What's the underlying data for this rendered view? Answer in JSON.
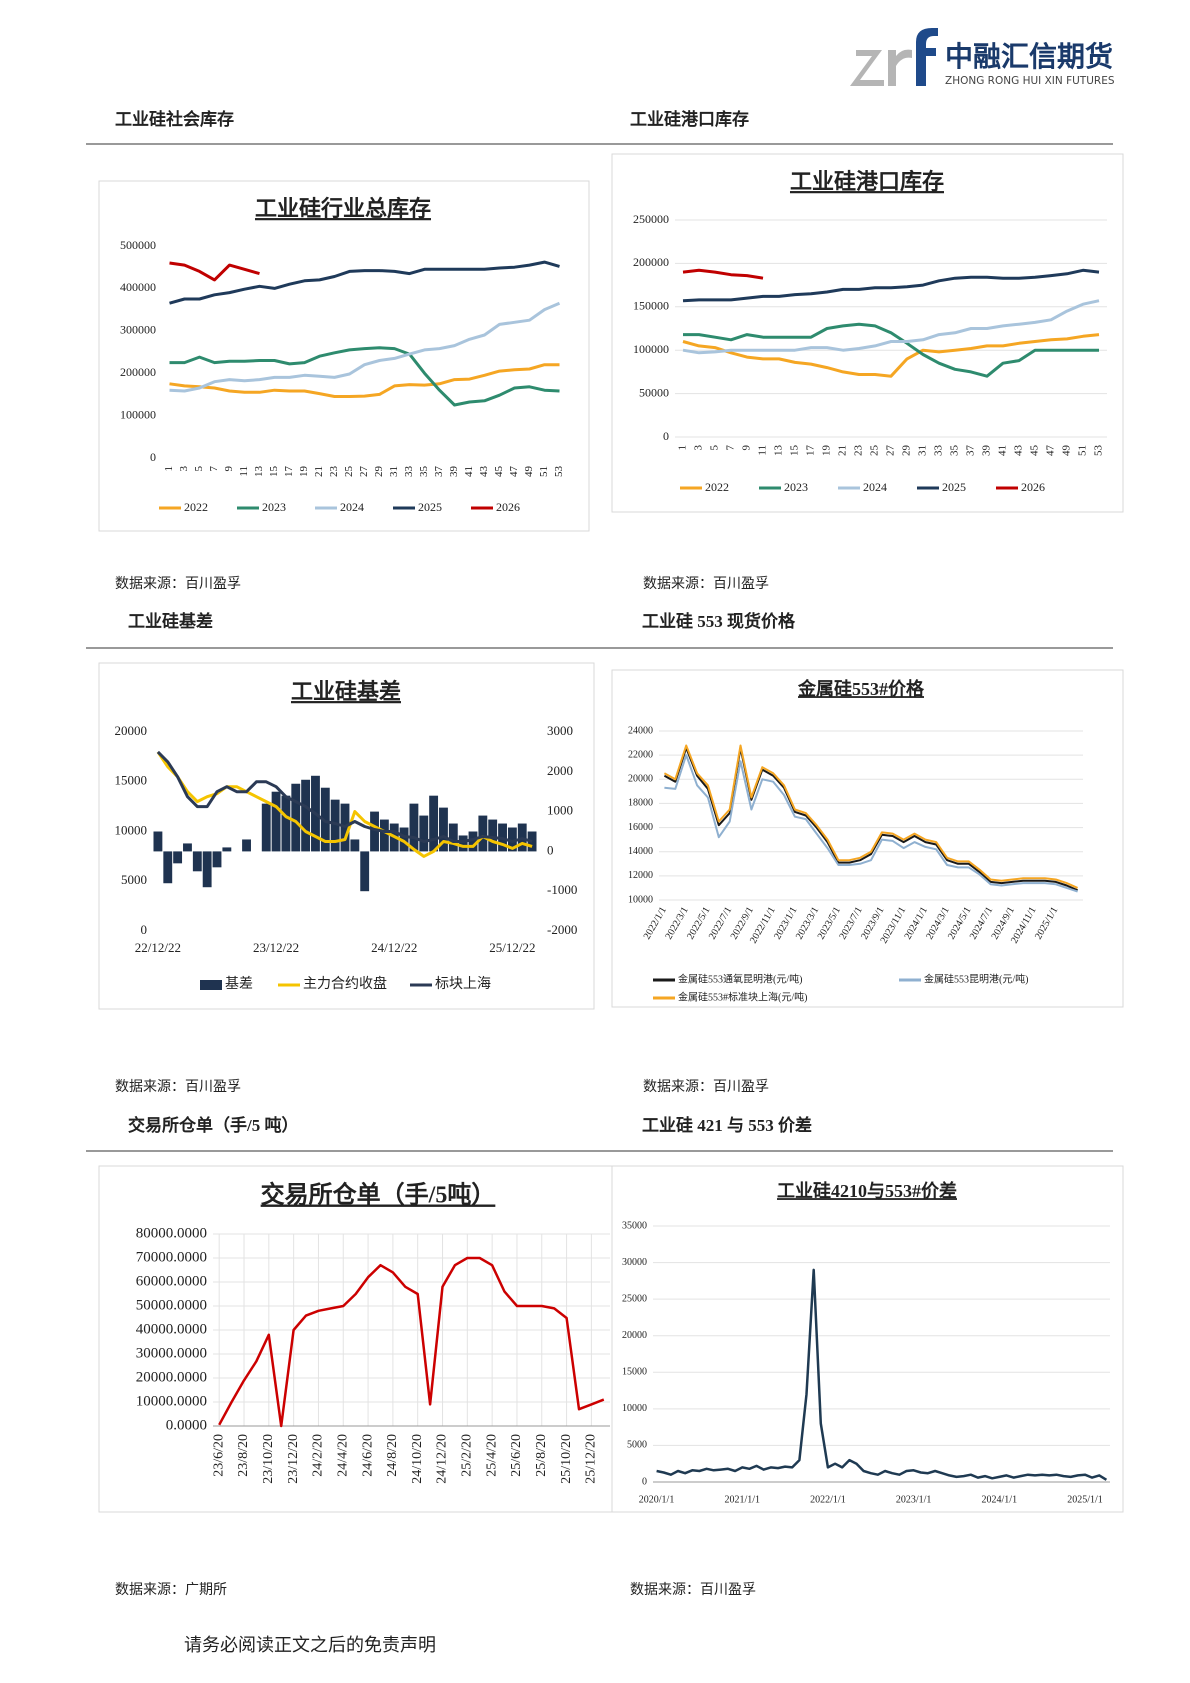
{
  "header": {
    "company": "中融汇信期货",
    "company_en": "ZHONG RONG HUI XIN FUTURES"
  },
  "sections": [
    {
      "heading": "工业硅社会库存",
      "source": "数据来源：百川盈孚"
    },
    {
      "heading": "工业硅港口库存",
      "source": "数据来源：百川盈孚"
    },
    {
      "heading": "工业硅基差",
      "source": "数据来源：百川盈孚"
    },
    {
      "heading": "工业硅 553 现货价格",
      "source": "数据来源：百川盈孚"
    },
    {
      "heading": "交易所仓单（手/5 吨）",
      "source": "数据来源：广期所"
    },
    {
      "heading": "工业硅 421 与 553 价差",
      "source": "数据来源：百川盈孚"
    }
  ],
  "footer": "请务必阅读正文之后的免责声明",
  "chart_data": [
    {
      "type": "line",
      "title": "工业硅行业总库存",
      "legend": "bottom",
      "grid": false,
      "categories": [
        "1",
        "3",
        "5",
        "7",
        "9",
        "11",
        "13",
        "15",
        "17",
        "19",
        "21",
        "23",
        "25",
        "27",
        "29",
        "31",
        "33",
        "35",
        "37",
        "39",
        "41",
        "43",
        "45",
        "47",
        "49",
        "51",
        "53"
      ],
      "ylim": [
        0,
        500000
      ],
      "yticks": [
        0,
        100000,
        200000,
        300000,
        400000,
        500000
      ],
      "series": [
        {
          "name": "2022",
          "color": "#f5a623",
          "values": [
            175000,
            170000,
            168000,
            165000,
            158000,
            155000,
            155000,
            160000,
            158000,
            158000,
            152000,
            145000,
            145000,
            146000,
            150000,
            170000,
            173000,
            172000,
            175000,
            185000,
            186000,
            195000,
            205000,
            208000,
            210000,
            220000,
            220000
          ]
        },
        {
          "name": "2023",
          "color": "#2e8b6e",
          "values": [
            225000,
            225000,
            238000,
            225000,
            228000,
            228000,
            230000,
            230000,
            222000,
            225000,
            240000,
            248000,
            255000,
            258000,
            260000,
            258000,
            245000,
            200000,
            160000,
            125000,
            132000,
            135000,
            148000,
            165000,
            168000,
            160000,
            158000
          ]
        },
        {
          "name": "2024",
          "color": "#a9c4dc",
          "values": [
            160000,
            158000,
            165000,
            180000,
            185000,
            182000,
            185000,
            190000,
            190000,
            195000,
            193000,
            190000,
            198000,
            220000,
            230000,
            235000,
            245000,
            255000,
            258000,
            265000,
            280000,
            290000,
            315000,
            320000,
            325000,
            350000,
            365000
          ]
        },
        {
          "name": "2025",
          "color": "#1f3a5a",
          "values": [
            365000,
            375000,
            375000,
            385000,
            390000,
            398000,
            405000,
            400000,
            410000,
            418000,
            420000,
            428000,
            440000,
            442000,
            442000,
            440000,
            435000,
            445000,
            445000,
            445000,
            445000,
            445000,
            448000,
            450000,
            455000,
            462000,
            452000
          ]
        },
        {
          "name": "2026",
          "color": "#c00000",
          "values": [
            460000,
            455000,
            440000,
            420000,
            455000,
            445000,
            435000,
            null,
            null,
            null,
            null,
            null,
            null,
            null,
            null,
            null,
            null,
            null,
            null,
            null,
            null,
            null,
            null,
            null,
            null,
            null,
            null
          ]
        }
      ]
    },
    {
      "type": "line",
      "title": "工业硅港口库存",
      "legend": "bottom",
      "grid": true,
      "categories": [
        "1",
        "3",
        "5",
        "7",
        "9",
        "11",
        "13",
        "15",
        "17",
        "19",
        "21",
        "23",
        "25",
        "27",
        "29",
        "31",
        "33",
        "35",
        "37",
        "39",
        "41",
        "43",
        "45",
        "47",
        "49",
        "51",
        "53"
      ],
      "ylim": [
        0,
        250000
      ],
      "yticks": [
        0,
        50000,
        100000,
        150000,
        200000,
        250000
      ],
      "series": [
        {
          "name": "2022",
          "color": "#f5a623",
          "values": [
            110000,
            105000,
            103000,
            97000,
            92000,
            90000,
            90000,
            86000,
            84000,
            80000,
            75000,
            72000,
            72000,
            70000,
            90000,
            100000,
            98000,
            100000,
            102000,
            105000,
            105000,
            108000,
            110000,
            112000,
            113000,
            116000,
            118000
          ]
        },
        {
          "name": "2023",
          "color": "#2e8b6e",
          "values": [
            118000,
            118000,
            115000,
            112000,
            118000,
            115000,
            115000,
            115000,
            115000,
            125000,
            128000,
            130000,
            128000,
            120000,
            108000,
            95000,
            85000,
            78000,
            75000,
            70000,
            85000,
            88000,
            100000,
            100000,
            100000,
            100000,
            100000
          ]
        },
        {
          "name": "2024",
          "color": "#a9c4dc",
          "values": [
            100000,
            97000,
            98000,
            100000,
            100000,
            100000,
            100000,
            100000,
            103000,
            103000,
            100000,
            102000,
            105000,
            110000,
            110000,
            112000,
            118000,
            120000,
            125000,
            125000,
            128000,
            130000,
            132000,
            135000,
            145000,
            153000,
            157000
          ]
        },
        {
          "name": "2025",
          "color": "#1f3a5a",
          "values": [
            157000,
            158000,
            158000,
            158000,
            160000,
            162000,
            162000,
            164000,
            165000,
            167000,
            170000,
            170000,
            172000,
            172000,
            173000,
            175000,
            180000,
            183000,
            184000,
            184000,
            183000,
            183000,
            184000,
            186000,
            188000,
            192000,
            190000
          ]
        },
        {
          "name": "2026",
          "color": "#c00000",
          "values": [
            190000,
            192000,
            190000,
            187000,
            186000,
            183000,
            null,
            null,
            null,
            null,
            null,
            null,
            null,
            null,
            null,
            null,
            null,
            null,
            null,
            null,
            null,
            null,
            null,
            null,
            null,
            null,
            null
          ]
        }
      ]
    },
    {
      "type": "combo",
      "title": "工业硅基差",
      "legend": "bottom",
      "grid": false,
      "categories": [
        "22/12/22",
        null,
        null,
        null,
        null,
        null,
        null,
        null,
        null,
        null,
        null,
        null,
        "23/12/22",
        null,
        null,
        null,
        null,
        null,
        null,
        null,
        null,
        null,
        null,
        null,
        "24/12/22",
        null,
        null,
        null,
        null,
        null,
        null,
        null,
        null,
        null,
        null,
        null,
        "25/12/22",
        null,
        null
      ],
      "ylim": [
        0,
        20000
      ],
      "yticks": [
        0,
        5000,
        10000,
        15000,
        20000
      ],
      "y2lim": [
        -2000,
        3000
      ],
      "y2ticks": [
        -2000,
        -1000,
        0,
        1000,
        2000,
        3000
      ],
      "series": [
        {
          "name": "基差",
          "color": "#1f3350",
          "kind": "bar",
          "axis": "y2",
          "values": [
            500,
            -800,
            -300,
            200,
            -500,
            -900,
            -400,
            100,
            0,
            300,
            0,
            1200,
            1500,
            1400,
            1700,
            1800,
            1900,
            1600,
            1300,
            1200,
            300,
            -1000,
            1000,
            800,
            700,
            600,
            1200,
            900,
            1400,
            1100,
            700,
            400,
            500,
            900,
            800,
            700,
            600,
            700,
            500
          ]
        },
        {
          "name": "主力合约收盘",
          "color": "#f5c400",
          "values": [
            18000,
            16500,
            15500,
            14000,
            13000,
            13500,
            13800,
            14500,
            14500,
            14000,
            13500,
            13000,
            12500,
            11500,
            11000,
            10000,
            9500,
            9000,
            9000,
            9200,
            12000,
            11000,
            10500,
            10000,
            9500,
            9000,
            8200,
            7500,
            8000,
            9000,
            8800,
            8500,
            8500,
            9500,
            9000,
            8700,
            8300,
            8800,
            8500
          ]
        },
        {
          "name": "标块上海",
          "color": "#2b3a55",
          "values": [
            18000,
            17000,
            15500,
            13500,
            12500,
            12500,
            14000,
            14500,
            14000,
            14000,
            15000,
            15000,
            14500,
            13500,
            13000,
            12500,
            11800,
            11000,
            10800,
            10500,
            11000,
            10500,
            10200,
            10000,
            10000,
            9500,
            9400,
            9000,
            9200,
            9500,
            9000,
            9000,
            9200,
            9500,
            9400,
            9300,
            9000,
            9300,
            9000
          ]
        }
      ]
    },
    {
      "type": "line",
      "title": "金属硅553#价格",
      "legend": "bottom",
      "grid": true,
      "categories": [
        "2022/1/1",
        null,
        "2022/3/1",
        null,
        "2022/5/1",
        null,
        "2022/7/1",
        null,
        "2022/9/1",
        null,
        "2022/11/1",
        null,
        "2023/1/1",
        null,
        "2023/3/1",
        null,
        "2023/5/1",
        null,
        "2023/7/1",
        null,
        "2023/9/1",
        null,
        "2023/11/1",
        null,
        "2024/1/1",
        null,
        "2024/3/1",
        null,
        "2024/5/1",
        null,
        "2024/7/1",
        null,
        "2024/9/1",
        null,
        "2024/11/1",
        null,
        "2025/1/1",
        null,
        null
      ],
      "ylim": [
        10000,
        24000
      ],
      "yticks": [
        10000,
        12000,
        14000,
        16000,
        18000,
        20000,
        22000,
        24000
      ],
      "series": [
        {
          "name": "金属硅553通氧昆明港(元/吨)",
          "color": "#1a1a1a",
          "values": [
            20300,
            19800,
            22600,
            20300,
            19200,
            16200,
            17200,
            22600,
            18300,
            20800,
            20300,
            19300,
            17300,
            17000,
            16000,
            14800,
            13100,
            13100,
            13300,
            13800,
            15400,
            15300,
            14800,
            15300,
            14800,
            14600,
            13300,
            13000,
            13000,
            12300,
            11500,
            11400,
            11500,
            11600,
            11600,
            11600,
            11500,
            11200,
            10800
          ]
        },
        {
          "name": "金属硅553昆明港(元/吨)",
          "color": "#8fb0d0",
          "values": [
            19300,
            19200,
            22000,
            19500,
            18500,
            15200,
            16500,
            21500,
            17500,
            20000,
            19800,
            18700,
            16900,
            16700,
            15500,
            14300,
            12900,
            12900,
            13000,
            13300,
            15000,
            14900,
            14300,
            14800,
            14400,
            14200,
            12900,
            12700,
            12700,
            12100,
            11300,
            11200,
            11300,
            11400,
            11400,
            11400,
            11300,
            11000,
            10700
          ]
        },
        {
          "name": "金属硅553#标准块上海(元/吨)",
          "color": "#f5a623",
          "values": [
            20500,
            20000,
            22800,
            20500,
            19500,
            16500,
            17500,
            22800,
            18500,
            21000,
            20500,
            19500,
            17500,
            17200,
            16200,
            15000,
            13300,
            13300,
            13500,
            14000,
            15600,
            15500,
            15000,
            15500,
            15000,
            14800,
            13500,
            13200,
            13200,
            12500,
            11700,
            11600,
            11700,
            11800,
            11800,
            11800,
            11700,
            11400,
            11000
          ]
        }
      ]
    },
    {
      "type": "line",
      "title": "交易所仓单（手/5吨）",
      "grid": true,
      "color": "#cc0000",
      "categories": [
        "23/6/20",
        null,
        "23/8/20",
        null,
        "23/10/20",
        null,
        "23/12/20",
        null,
        "24/2/20",
        null,
        "24/4/20",
        null,
        "24/6/20",
        null,
        "24/8/20",
        null,
        "24/10/20",
        null,
        "24/12/20",
        null,
        "25/2/20",
        null,
        "25/4/20",
        null,
        "25/6/20",
        null,
        "25/8/20",
        null,
        "25/10/20",
        null,
        "25/12/20",
        null
      ],
      "ylim": [
        0,
        80000
      ],
      "yticks": [
        {
          "value": 0,
          "label": "0.0000"
        },
        {
          "value": 10000,
          "label": "10000.0000"
        },
        {
          "value": 20000,
          "label": "20000.0000"
        },
        {
          "value": 30000,
          "label": "30000.0000"
        },
        {
          "value": 40000,
          "label": "40000.0000"
        },
        {
          "value": 50000,
          "label": "50000.0000"
        },
        {
          "value": 60000,
          "label": "60000.0000"
        },
        {
          "value": 70000,
          "label": "70000.0000"
        },
        {
          "value": 80000,
          "label": "80000.0000"
        }
      ],
      "values": [
        500,
        10000,
        19000,
        27000,
        38000,
        0,
        40000,
        46000,
        48000,
        49000,
        50000,
        55000,
        62000,
        67000,
        64000,
        58000,
        55000,
        9000,
        58000,
        67000,
        70000,
        70000,
        67000,
        56000,
        50000,
        50000,
        50000,
        49000,
        45000,
        7000,
        9000,
        11000
      ]
    },
    {
      "type": "line",
      "title": "工业硅4210与553#价差",
      "grid": true,
      "color": "#1f3a52",
      "categories": [
        "2020/1/1",
        null,
        null,
        null,
        null,
        null,
        null,
        null,
        null,
        null,
        null,
        null,
        "2021/1/1",
        null,
        null,
        null,
        null,
        null,
        null,
        null,
        null,
        null,
        null,
        null,
        "2022/1/1",
        null,
        null,
        null,
        null,
        null,
        null,
        null,
        null,
        null,
        null,
        null,
        "2023/1/1",
        null,
        null,
        null,
        null,
        null,
        null,
        null,
        null,
        null,
        null,
        null,
        "2024/1/1",
        null,
        null,
        null,
        null,
        null,
        null,
        null,
        null,
        null,
        null,
        null,
        "2025/1/1",
        null,
        null,
        null
      ],
      "ylim": [
        0,
        35000
      ],
      "yticks": [
        0,
        5000,
        10000,
        15000,
        20000,
        25000,
        30000,
        35000
      ],
      "values": [
        1500,
        1300,
        1000,
        1500,
        1200,
        1600,
        1500,
        1800,
        1600,
        1700,
        1800,
        1500,
        2000,
        1800,
        2200,
        1700,
        2000,
        1900,
        2100,
        2000,
        3000,
        12000,
        29000,
        8000,
        2000,
        2500,
        2000,
        3000,
        2500,
        1500,
        1200,
        1000,
        1500,
        1200,
        1000,
        1500,
        1600,
        1300,
        1200,
        1500,
        1200,
        900,
        700,
        800,
        1000,
        600,
        800,
        500,
        700,
        900,
        600,
        800,
        1000,
        900,
        1000,
        900,
        1000,
        800,
        700,
        900,
        1000,
        600,
        900,
        300
      ]
    }
  ]
}
